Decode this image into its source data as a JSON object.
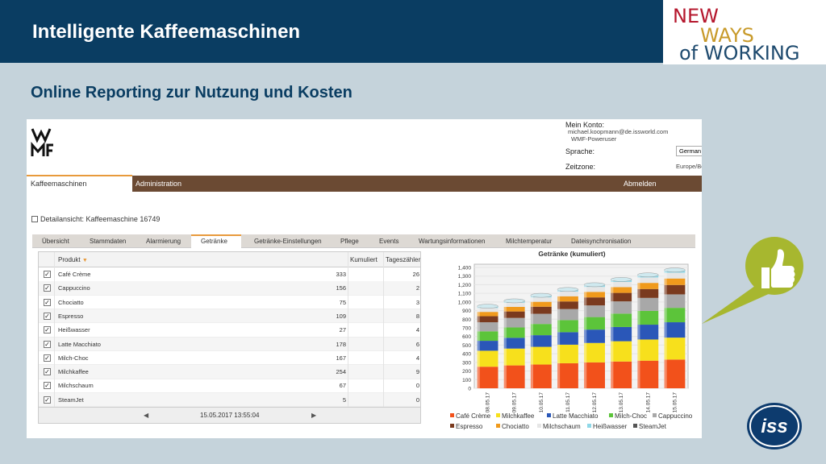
{
  "slide": {
    "title": "Intelligente Kaffeemaschinen",
    "subtitle": "Online Reporting zur Nutzung und Kosten",
    "logo": {
      "line1": "NEW",
      "line2": "WAYS",
      "line3": "of WORKING"
    },
    "colors": {
      "title_bar": "#0a3d62",
      "background": "#c5d3db",
      "thumb_icon": "#a7b72f",
      "iss_logo": "#0d3b6e"
    },
    "icons": [
      "thumbs-up-icon",
      "iss-logo"
    ]
  },
  "app": {
    "account": {
      "label": "Mein Konto:",
      "email": "michael.koopmann@de.issworld.com",
      "role": "WMF-Poweruser",
      "language_label": "Sprache:",
      "language_value": "German",
      "timezone_label": "Zeitzone:",
      "timezone_value": "Europe/Be"
    },
    "nav": {
      "tabs": [
        "Kaffeemaschinen",
        "Administration"
      ],
      "logout": "Abmelden"
    },
    "detail_title": "Detailansicht: Kaffeemaschine 16749",
    "tabs": [
      "Übersicht",
      "Stammdaten",
      "Alarmierung",
      "Getränke",
      "Getränke-Einstellungen",
      "Pflege",
      "Events",
      "Wartungsinformationen",
      "Milchtemperatur",
      "Dateisynchronisation"
    ],
    "active_tab": "Getränke",
    "table": {
      "headers": [
        "Produkt",
        "Kumuliert",
        "Tageszähler"
      ],
      "rows": [
        [
          "Café Crème",
          "333",
          "26"
        ],
        [
          "Cappuccino",
          "156",
          "2"
        ],
        [
          "Chociatto",
          "75",
          "3"
        ],
        [
          "Espresso",
          "109",
          "8"
        ],
        [
          "Heißwasser",
          "27",
          "4"
        ],
        [
          "Latte Macchiato",
          "178",
          "6"
        ],
        [
          "Milch-Choc",
          "167",
          "4"
        ],
        [
          "Milchkaffee",
          "254",
          "9"
        ],
        [
          "Milchschaum",
          "67",
          "0"
        ],
        [
          "SteamJet",
          "5",
          "0"
        ]
      ],
      "pager_date": "15.05.2017 13:55:04",
      "prev": "◀",
      "next": "▶"
    }
  },
  "chart_data": {
    "type": "bar",
    "stacked": true,
    "title": "Getränke (kumuliert)",
    "categories": [
      "08.05.17",
      "09.05.17",
      "10.05.17",
      "11.05.17",
      "12.05.17",
      "13.05.17",
      "14.05.17",
      "15.05.17"
    ],
    "yticks": [
      "1,400",
      "1,300",
      "1,200",
      "1,100",
      "1,000",
      "900",
      "800",
      "700",
      "600",
      "500",
      "400",
      "300",
      "200",
      "100",
      "0"
    ],
    "ylim": [
      0,
      1400
    ],
    "series": [
      {
        "name": "Café Crème",
        "color": "#f2511b",
        "values": [
          250,
          265,
          275,
          290,
          300,
          310,
          320,
          333
        ]
      },
      {
        "name": "Milchkaffee",
        "color": "#f7e01c",
        "values": [
          185,
          195,
          205,
          215,
          225,
          235,
          245,
          254
        ]
      },
      {
        "name": "Latte Macchiato",
        "color": "#2a57b8",
        "values": [
          115,
          125,
          135,
          145,
          155,
          165,
          172,
          178
        ]
      },
      {
        "name": "Milch-Choc",
        "color": "#5cc43a",
        "values": [
          110,
          120,
          130,
          140,
          145,
          155,
          160,
          167
        ]
      },
      {
        "name": "Cappuccino",
        "color": "#a8a8a8",
        "values": [
          105,
          110,
          118,
          128,
          135,
          142,
          150,
          156
        ]
      },
      {
        "name": "Espresso",
        "color": "#7a3a1e",
        "values": [
          70,
          75,
          82,
          88,
          93,
          98,
          103,
          109
        ]
      },
      {
        "name": "Chociatto",
        "color": "#f09a1c",
        "values": [
          50,
          53,
          57,
          60,
          64,
          67,
          71,
          75
        ]
      },
      {
        "name": "Milchschaum",
        "color": "#e6e6e6",
        "values": [
          45,
          48,
          51,
          54,
          57,
          60,
          63,
          67
        ]
      },
      {
        "name": "Heißwasser",
        "color": "#8fd8e8",
        "values": [
          18,
          19,
          20,
          21,
          22,
          24,
          25,
          27
        ]
      },
      {
        "name": "SteamJet",
        "color": "#555555",
        "values": [
          3,
          3,
          4,
          4,
          4,
          5,
          5,
          5
        ]
      }
    ],
    "legend_position": "bottom"
  }
}
